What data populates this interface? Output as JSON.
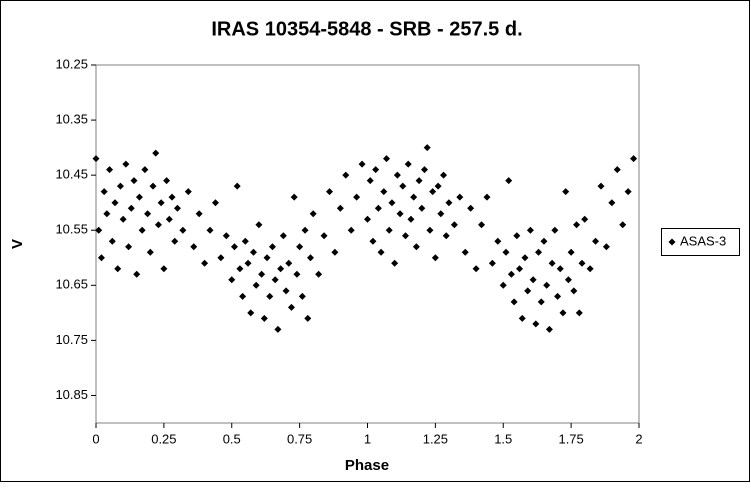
{
  "chart_data": {
    "type": "scatter",
    "title": "IRAS 10354-5848  - SRB - 257.5 d.",
    "x_label": "Phase",
    "y_label": "V",
    "xlim": [
      0,
      2
    ],
    "xticks": [
      0,
      0.25,
      0.5,
      0.75,
      1,
      1.25,
      1.5,
      1.75,
      2
    ],
    "ylim": [
      10.9,
      10.25
    ],
    "yticks": [
      10.25,
      10.35,
      10.45,
      10.55,
      10.65,
      10.75,
      10.85
    ],
    "legend": "right",
    "series": [
      {
        "name": "ASAS-3",
        "color": "#000000",
        "x": [
          0.0,
          0.01,
          0.02,
          0.03,
          0.04,
          0.05,
          0.06,
          0.07,
          0.08,
          0.09,
          0.1,
          0.11,
          0.12,
          0.13,
          0.14,
          0.15,
          0.16,
          0.17,
          0.18,
          0.19,
          0.2,
          0.21,
          0.22,
          0.23,
          0.24,
          0.25,
          0.26,
          0.27,
          0.28,
          0.29,
          0.3,
          0.32,
          0.34,
          0.36,
          0.38,
          0.4,
          0.42,
          0.44,
          0.46,
          0.48,
          0.5,
          0.51,
          0.52,
          0.53,
          0.54,
          0.55,
          0.56,
          0.57,
          0.58,
          0.59,
          0.6,
          0.61,
          0.62,
          0.63,
          0.64,
          0.65,
          0.66,
          0.67,
          0.68,
          0.69,
          0.7,
          0.71,
          0.72,
          0.73,
          0.74,
          0.75,
          0.76,
          0.77,
          0.78,
          0.79,
          0.8,
          0.82,
          0.84,
          0.86,
          0.88,
          0.9,
          0.92,
          0.94,
          0.96,
          0.98,
          1.0,
          1.01,
          1.02,
          1.03,
          1.04,
          1.05,
          1.06,
          1.07,
          1.08,
          1.09,
          1.1,
          1.11,
          1.12,
          1.13,
          1.14,
          1.15,
          1.16,
          1.17,
          1.18,
          1.19,
          1.2,
          1.21,
          1.22,
          1.23,
          1.24,
          1.25,
          1.26,
          1.27,
          1.28,
          1.29,
          1.3,
          1.32,
          1.34,
          1.36,
          1.38,
          1.4,
          1.42,
          1.44,
          1.46,
          1.48,
          1.5,
          1.51,
          1.52,
          1.53,
          1.54,
          1.55,
          1.56,
          1.57,
          1.58,
          1.59,
          1.6,
          1.61,
          1.62,
          1.63,
          1.64,
          1.65,
          1.66,
          1.67,
          1.68,
          1.69,
          1.7,
          1.71,
          1.72,
          1.73,
          1.74,
          1.75,
          1.76,
          1.77,
          1.78,
          1.79,
          1.8,
          1.82,
          1.84,
          1.86,
          1.88,
          1.9,
          1.92,
          1.94,
          1.96,
          1.98
        ],
        "values": [
          10.42,
          10.55,
          10.6,
          10.48,
          10.52,
          10.44,
          10.57,
          10.5,
          10.62,
          10.47,
          10.53,
          10.43,
          10.58,
          10.51,
          10.46,
          10.63,
          10.49,
          10.55,
          10.44,
          10.52,
          10.59,
          10.47,
          10.41,
          10.54,
          10.5,
          10.62,
          10.46,
          10.53,
          10.49,
          10.57,
          10.51,
          10.55,
          10.48,
          10.58,
          10.52,
          10.61,
          10.55,
          10.5,
          10.6,
          10.56,
          10.64,
          10.58,
          10.47,
          10.62,
          10.67,
          10.57,
          10.61,
          10.7,
          10.59,
          10.65,
          10.54,
          10.63,
          10.71,
          10.6,
          10.67,
          10.58,
          10.64,
          10.73,
          10.62,
          10.56,
          10.66,
          10.61,
          10.69,
          10.49,
          10.63,
          10.58,
          10.67,
          10.55,
          10.71,
          10.6,
          10.52,
          10.63,
          10.56,
          10.48,
          10.59,
          10.51,
          10.45,
          10.55,
          10.49,
          10.43,
          10.53,
          10.46,
          10.57,
          10.44,
          10.51,
          10.59,
          10.48,
          10.42,
          10.55,
          10.5,
          10.61,
          10.45,
          10.52,
          10.47,
          10.56,
          10.43,
          10.53,
          10.49,
          10.58,
          10.46,
          10.51,
          10.44,
          10.4,
          10.55,
          10.48,
          10.6,
          10.47,
          10.52,
          10.45,
          10.56,
          10.5,
          10.54,
          10.49,
          10.59,
          10.51,
          10.62,
          10.54,
          10.49,
          10.61,
          10.57,
          10.65,
          10.59,
          10.46,
          10.63,
          10.68,
          10.56,
          10.62,
          10.71,
          10.6,
          10.66,
          10.55,
          10.64,
          10.72,
          10.59,
          10.68,
          10.57,
          10.65,
          10.73,
          10.61,
          10.55,
          10.67,
          10.62,
          10.7,
          10.48,
          10.64,
          10.59,
          10.66,
          10.54,
          10.7,
          10.61,
          10.53,
          10.62,
          10.57,
          10.47,
          10.58,
          10.5,
          10.44,
          10.54,
          10.48,
          10.42
        ]
      }
    ]
  }
}
